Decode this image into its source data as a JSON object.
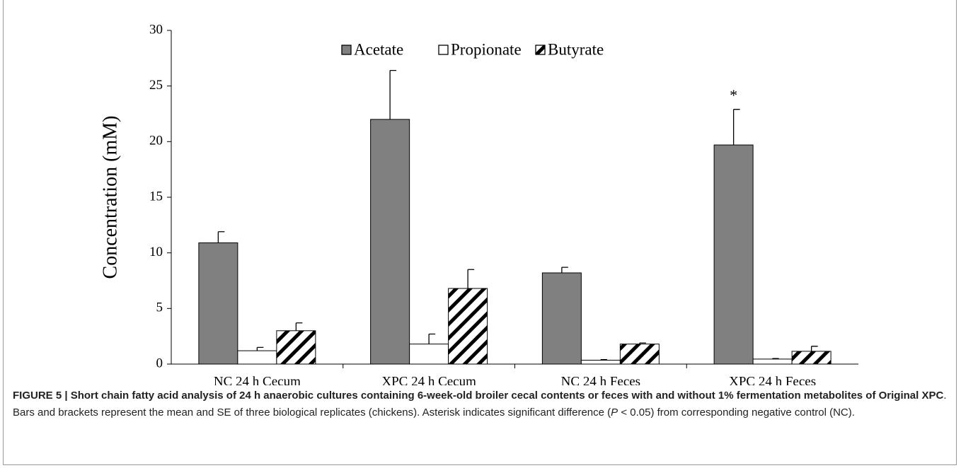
{
  "chart_data": {
    "type": "bar",
    "ylabel": "Concentration (mM)",
    "categories": [
      "NC 24 h Cecum",
      "XPC 24 h Cecum",
      "NC 24 h Feces",
      "XPC 24 h Feces"
    ],
    "series": [
      {
        "name": "Acetate",
        "color": "#808080",
        "values": [
          10.9,
          22.0,
          8.2,
          19.7
        ],
        "errors": [
          1.0,
          4.4,
          0.5,
          3.2
        ]
      },
      {
        "name": "Propionate",
        "color": "#ffffff",
        "values": [
          1.2,
          1.8,
          0.35,
          0.45
        ],
        "errors": [
          0.3,
          0.9,
          0.05,
          0.05
        ]
      },
      {
        "name": "Butyrate",
        "color": "#000000",
        "pattern": "hatch",
        "values": [
          3.0,
          6.8,
          1.8,
          1.15
        ],
        "errors": [
          0.7,
          1.7,
          0.1,
          0.45
        ]
      }
    ],
    "annotations": [
      "*"
    ],
    "ylim": [
      0,
      30
    ],
    "yticks": [
      0,
      5,
      10,
      15,
      20,
      25,
      30
    ],
    "grid": false,
    "legend": "top"
  },
  "caption": [
    {
      "text": "FIGURE 5 | Short chain fatty acid analysis of 24 h anaerobic cultures containing 6-week-old broiler cecal contents or feces with and without 1% fermentation metabolites of Original XPC",
      "style": "bold"
    },
    {
      "text": ". Bars and brackets represent the mean and SE of three biological replicates (chickens). Asterisk indicates significant difference (",
      "style": "normal"
    },
    {
      "text": "P",
      "style": "italic"
    },
    {
      "text": " < 0.05) from corresponding negative control (NC).",
      "style": "normal"
    }
  ]
}
